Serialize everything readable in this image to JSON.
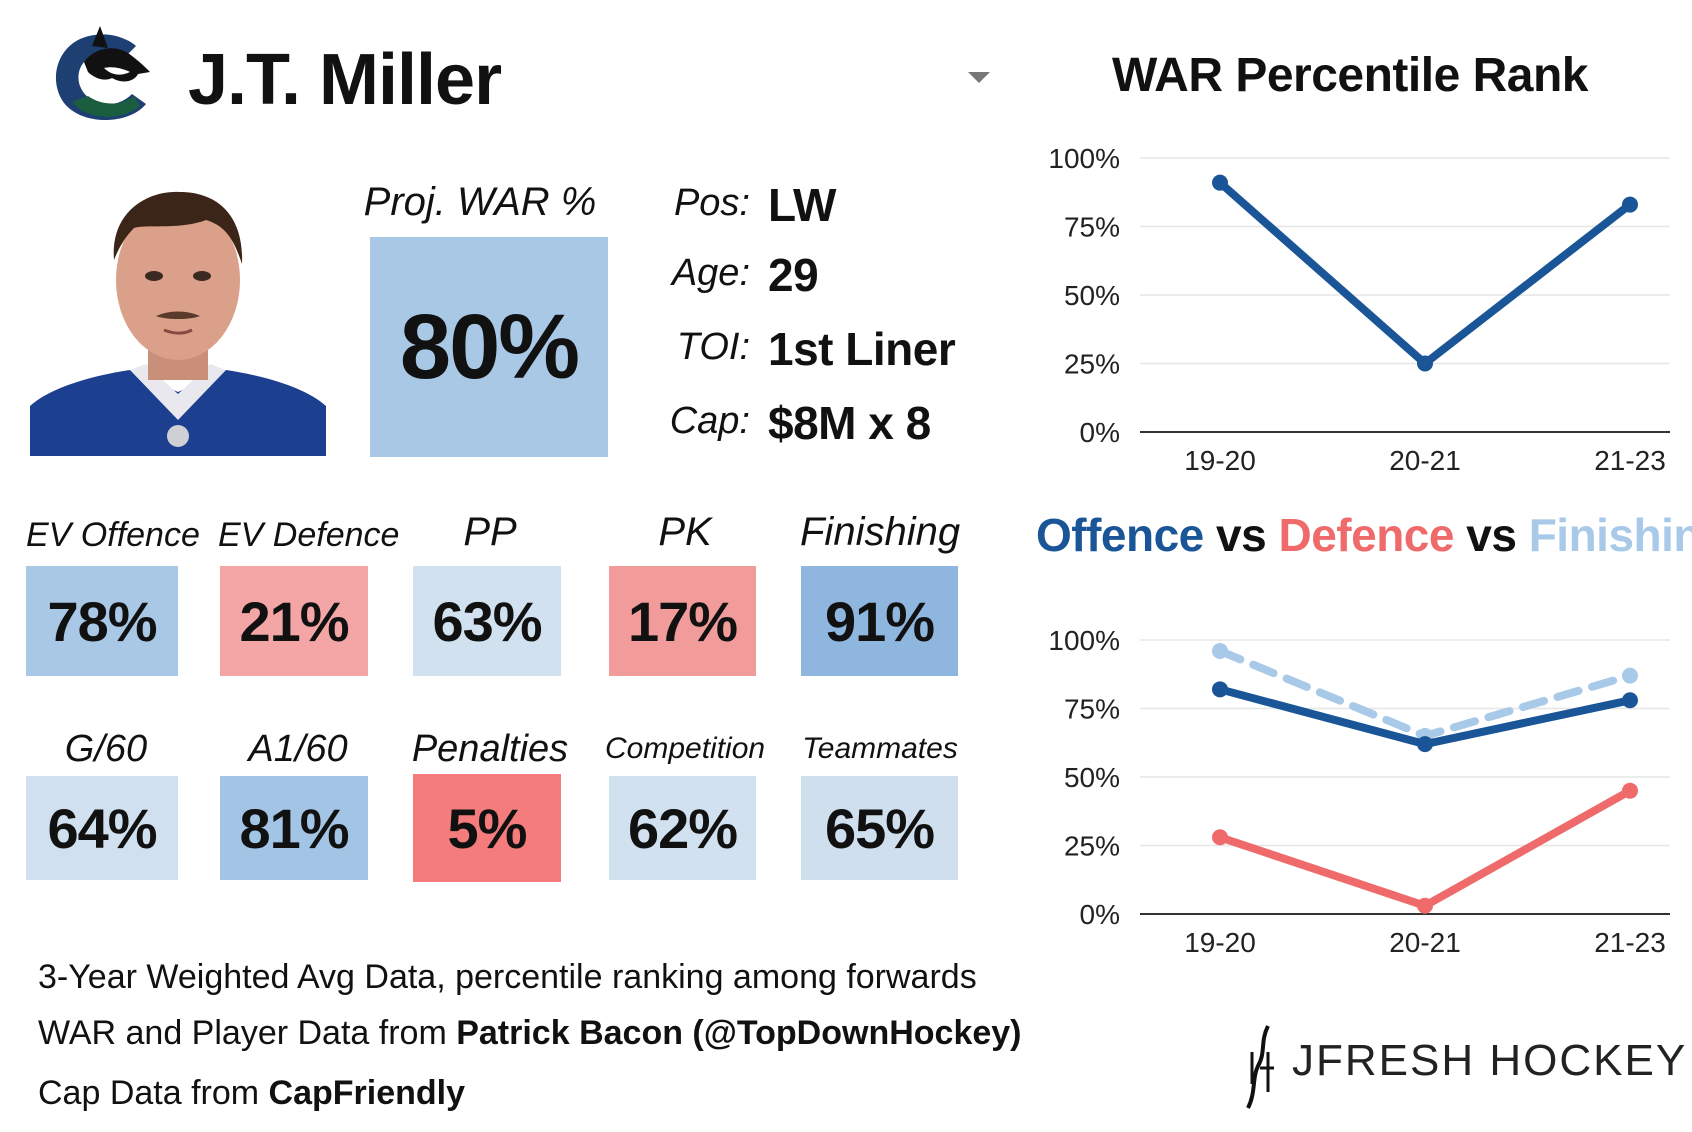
{
  "header": {
    "player_name": "J.T. Miller",
    "team_logo_icon": "canucks-orca-logo-icon",
    "dropdown_icon": "chevron-down-icon"
  },
  "projection": {
    "label": "Proj. WAR %",
    "value": "80%",
    "color": "#a8c8e6"
  },
  "info": [
    {
      "label": "Pos:",
      "value": "LW"
    },
    {
      "label": "Age:",
      "value": "29"
    },
    {
      "label": "TOI:",
      "value": "1st Liner"
    },
    {
      "label": "Cap:",
      "value": "$8M x 8"
    }
  ],
  "metrics_row1": [
    {
      "label": "EV Offence",
      "value": "78%",
      "color": "#a8c8e6"
    },
    {
      "label": "EV Defence",
      "value": "21%",
      "color": "#f4a6a6"
    },
    {
      "label": "PP",
      "value": "63%",
      "color": "#d2e1ef"
    },
    {
      "label": "PK",
      "value": "17%",
      "color": "#f29b9b"
    },
    {
      "label": "Finishing",
      "value": "91%",
      "color": "#8fb6de"
    }
  ],
  "metrics_row2": [
    {
      "label": "G/60",
      "value": "64%",
      "color": "#d0e0ef"
    },
    {
      "label": "A1/60",
      "value": "81%",
      "color": "#a3c5e5"
    },
    {
      "label": "Penalties",
      "value": "5%",
      "color": "#f47c7c"
    },
    {
      "label": "Competition",
      "value": "62%",
      "color": "#d2e1ef"
    },
    {
      "label": "Teammates",
      "value": "65%",
      "color": "#cfdfee"
    }
  ],
  "footer": {
    "line1": "3-Year Weighted Avg Data, percentile ranking among forwards",
    "line2_prefix": "WAR and Player Data from ",
    "line2_bold": "Patrick Bacon (@TopDownHockey)",
    "line3_prefix": "Cap Data from ",
    "line3_bold": "CapFriendly"
  },
  "brand": {
    "name": "JFRESH HOCKEY",
    "icon": "jfresh-hockey-stick-logo-icon"
  },
  "chart_titles": {
    "war": "WAR Percentile Rank",
    "ovd_offence": "Offence",
    "ovd_vs1": " vs ",
    "ovd_defence": "Defence",
    "ovd_vs2": " vs ",
    "ovd_finishing": "Finishing"
  },
  "colors": {
    "offence": "#1a5597",
    "defence": "#ef6b6b",
    "finishing": "#a9c9e8",
    "war_line": "#1a5597"
  },
  "chart_data": [
    {
      "type": "line",
      "title": "WAR Percentile Rank",
      "categories": [
        "19-20",
        "20-21",
        "21-23"
      ],
      "series": [
        {
          "values": [
            91,
            25,
            83
          ],
          "color": "#1a5597",
          "dashed": false
        }
      ],
      "ylim": [
        0,
        100
      ],
      "yticks": [
        "0%",
        "25%",
        "50%",
        "75%",
        "100%"
      ],
      "grid": true
    },
    {
      "type": "line",
      "title": "Offence vs Defence vs Finishing",
      "categories": [
        "19-20",
        "20-21",
        "21-23"
      ],
      "series": [
        {
          "name": "Finishing",
          "values": [
            96,
            65,
            87
          ],
          "color": "#a9c9e8",
          "dashed": true
        },
        {
          "name": "Offence",
          "values": [
            82,
            62,
            78
          ],
          "color": "#1a5597",
          "dashed": false
        },
        {
          "name": "Defence",
          "values": [
            28,
            3,
            45
          ],
          "color": "#ef6b6b",
          "dashed": false
        }
      ],
      "ylim": [
        0,
        100
      ],
      "yticks": [
        "0%",
        "25%",
        "50%",
        "75%",
        "100%"
      ],
      "grid": true
    }
  ]
}
